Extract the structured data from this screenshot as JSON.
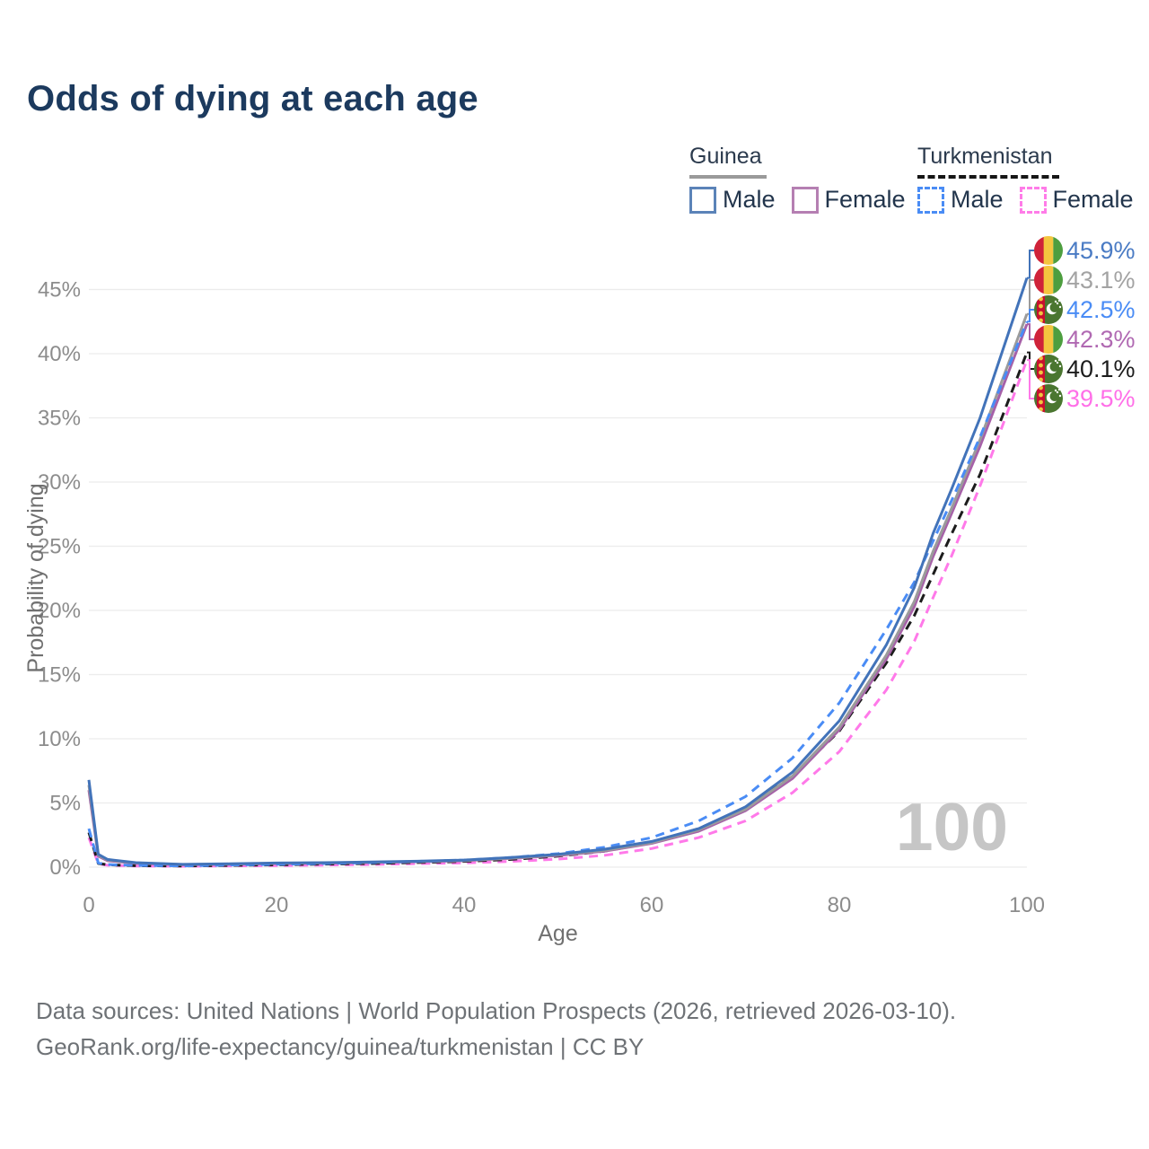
{
  "title": "Odds of dying at each age",
  "legend": {
    "groups": [
      {
        "name": "Guinea",
        "line_style": "solid",
        "underline_color": "#9a9a9a",
        "items": [
          {
            "label": "Male",
            "color": "#5b83b8"
          },
          {
            "label": "Female",
            "color": "#b57fb2"
          }
        ]
      },
      {
        "name": "Turkmenistan",
        "line_style": "dashed",
        "underline_color": "#161616",
        "items": [
          {
            "label": "Male",
            "color": "#4a8cf5"
          },
          {
            "label": "Female",
            "color": "#ff7ce8"
          }
        ]
      }
    ]
  },
  "watermark": "100",
  "chart_data": {
    "type": "line",
    "title": "Odds of dying at each age",
    "xlabel": "Age",
    "ylabel": "Probability of dying",
    "xlim": [
      0,
      100
    ],
    "ylim": [
      0,
      47
    ],
    "grid": "horizontal-only",
    "x_ticks": [
      0,
      20,
      40,
      60,
      80,
      100
    ],
    "y_tick_values": [
      0,
      5,
      10,
      15,
      20,
      25,
      30,
      35,
      40,
      45
    ],
    "y_tick_suffix": "%",
    "x": [
      0,
      1,
      2,
      5,
      10,
      15,
      20,
      25,
      30,
      35,
      40,
      45,
      50,
      55,
      60,
      65,
      70,
      75,
      80,
      85,
      88,
      90,
      92,
      95,
      100
    ],
    "series": [
      {
        "id": "tm-female",
        "name": "Turkmenistan Female",
        "country": "turkmenistan",
        "sex": "female",
        "color": "#ff79e9",
        "label_color": "#ff6fe8",
        "style": "dashed",
        "end_label": "39.5%",
        "values": [
          2.3,
          0.26,
          0.15,
          0.09,
          0.07,
          0.1,
          0.12,
          0.16,
          0.2,
          0.27,
          0.33,
          0.45,
          0.62,
          0.92,
          1.45,
          2.3,
          3.6,
          5.8,
          9.0,
          13.8,
          17.6,
          21.0,
          24.3,
          29.7,
          39.5
        ]
      },
      {
        "id": "tm-total",
        "name": "Turkmenistan",
        "country": "turkmenistan",
        "sex": "both",
        "color": "#1c1c1c",
        "label_color": "#1c1c1c",
        "style": "dashed",
        "end_label": "40.1%",
        "values": [
          2.7,
          0.29,
          0.18,
          0.11,
          0.09,
          0.13,
          0.18,
          0.24,
          0.28,
          0.36,
          0.45,
          0.6,
          0.85,
          1.25,
          1.9,
          3.0,
          4.6,
          7.1,
          10.6,
          15.9,
          19.6,
          22.8,
          26.0,
          30.6,
          40.1
        ]
      },
      {
        "id": "guinea-female",
        "name": "Guinea Female",
        "country": "guinea",
        "sex": "female",
        "color": "#a661a8",
        "label_color": "#b069b2",
        "style": "solid",
        "end_label": "42.3%",
        "values": [
          6.0,
          0.85,
          0.5,
          0.3,
          0.19,
          0.22,
          0.28,
          0.31,
          0.36,
          0.42,
          0.5,
          0.68,
          0.9,
          1.25,
          1.85,
          2.8,
          4.4,
          6.9,
          10.7,
          16.2,
          20.3,
          24.2,
          27.6,
          32.8,
          42.3
        ]
      },
      {
        "id": "guinea-total",
        "name": "Guinea",
        "country": "guinea",
        "sex": "both",
        "color": "#9b9b9b",
        "label_color": "#a3a3a3",
        "style": "solid",
        "end_label": "43.1%",
        "values": [
          6.4,
          0.92,
          0.55,
          0.33,
          0.2,
          0.24,
          0.3,
          0.33,
          0.38,
          0.44,
          0.52,
          0.7,
          0.95,
          1.3,
          1.9,
          2.9,
          4.5,
          7.1,
          10.9,
          16.5,
          20.7,
          24.6,
          28.0,
          33.3,
          43.1
        ]
      },
      {
        "id": "tm-male",
        "name": "Turkmenistan Male",
        "country": "turkmenistan",
        "sex": "male",
        "color": "#4a8cf5",
        "label_color": "#4a8cf5",
        "style": "dashed",
        "end_label": "42.5%",
        "values": [
          3.0,
          0.32,
          0.2,
          0.13,
          0.1,
          0.16,
          0.22,
          0.28,
          0.35,
          0.45,
          0.55,
          0.75,
          1.05,
          1.55,
          2.3,
          3.6,
          5.5,
          8.5,
          12.8,
          18.5,
          22.2,
          25.4,
          28.6,
          33.5,
          42.5
        ]
      },
      {
        "id": "guinea-male",
        "name": "Guinea Male",
        "country": "guinea",
        "sex": "male",
        "color": "#4273b9",
        "label_color": "#4a7bc4",
        "style": "solid",
        "end_label": "45.9%",
        "values": [
          6.8,
          1.0,
          0.6,
          0.35,
          0.22,
          0.26,
          0.32,
          0.35,
          0.4,
          0.46,
          0.55,
          0.75,
          1.0,
          1.4,
          2.0,
          3.0,
          4.7,
          7.4,
          11.4,
          17.3,
          21.8,
          26.0,
          29.5,
          35.0,
          45.9
        ]
      }
    ],
    "flag_colors": {
      "guinea": {
        "red": "#cf2339",
        "yellow": "#f4c63f",
        "green": "#4d9e3f"
      },
      "turkmenistan": {
        "green": "#4a7630",
        "stripe_red": "#c8102e",
        "ornament": "#f0c53f",
        "crescent": "#ffffff"
      }
    }
  },
  "footer": {
    "line1": "Data sources: United Nations | World Population Prospects (2026, retrieved 2026-03-10).",
    "line2": "GeoRank.org/life-expectancy/guinea/turkmenistan | CC BY"
  }
}
